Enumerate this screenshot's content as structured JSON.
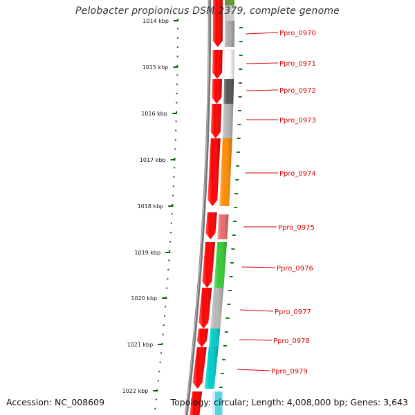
{
  "title": "Pelobacter propionicus DSM 2379, complete genome",
  "footer": {
    "accession": "Accession: NC_008609",
    "summary": "Topology: circular; Length: 4,008,000 bp; Genes: 3,643"
  },
  "ticks": [
    "1014 kbp",
    "1015 kbp",
    "1016 kbp",
    "1017 kbp",
    "1018 kbp",
    "1019 kbp",
    "1020 kbp",
    "1021 kbp",
    "1022 kbp"
  ],
  "genes": [
    {
      "label": "Ppro_0970",
      "color": "#aaaaaa"
    },
    {
      "label": "Ppro_0971",
      "color": "#ffffff"
    },
    {
      "label": "Ppro_0972",
      "color": "#555555"
    },
    {
      "label": "Ppro_0973",
      "color": "#b3b3b3"
    },
    {
      "label": "Ppro_0974",
      "color": "#ff8c00"
    },
    {
      "label": "Ppro_0975",
      "color": "#e86a6a"
    },
    {
      "label": "Ppro_0976",
      "color": "#33cc33"
    },
    {
      "label": "Ppro_0977",
      "color": "#b8b8b8"
    },
    {
      "label": "Ppro_0978",
      "color": "#00cccc"
    },
    {
      "label": "Ppro_0979",
      "color": "#00cccc"
    }
  ],
  "colors": {
    "cds": "#ff0000",
    "backbone": "#777777",
    "ticks": "#006600",
    "labels": "#d80000"
  }
}
